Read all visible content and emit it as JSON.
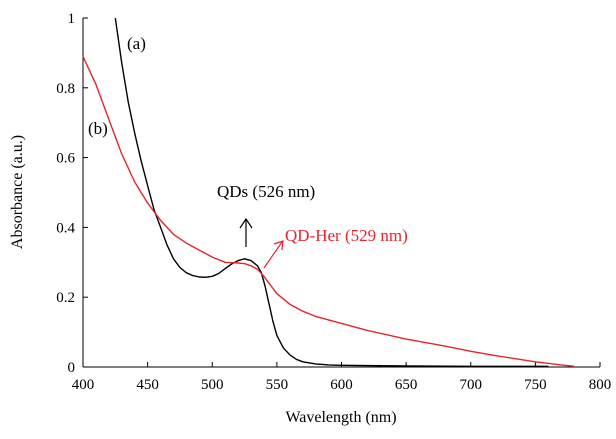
{
  "chart_data": {
    "type": "line",
    "title": "",
    "xlabel": "Wavelength (nm)",
    "ylabel": "Absorbance (a.u.)",
    "xlim": [
      400,
      800
    ],
    "ylim": [
      0,
      1
    ],
    "x_ticks": [
      400,
      450,
      500,
      550,
      600,
      650,
      700,
      750,
      800
    ],
    "y_ticks": [
      0,
      0.2,
      0.4,
      0.6,
      0.8,
      1
    ],
    "x_tick_labels": [
      "400",
      "450",
      "500",
      "550",
      "600",
      "650",
      "700",
      "750",
      "800"
    ],
    "y_tick_labels": [
      "0",
      "0.2",
      "0.4",
      "0.6",
      "0.8",
      "1"
    ],
    "grid": false,
    "legend": "none",
    "series": [
      {
        "name": "(a)",
        "color": "#000000",
        "x": [
          425,
          430,
          435,
          440,
          445,
          450,
          455,
          460,
          465,
          470,
          475,
          480,
          485,
          490,
          495,
          500,
          505,
          510,
          515,
          520,
          525,
          530,
          535,
          538,
          541,
          544,
          547,
          550,
          555,
          560,
          565,
          570,
          580,
          590,
          600,
          650,
          700,
          750,
          760
        ],
        "y": [
          1.0,
          0.87,
          0.76,
          0.67,
          0.59,
          0.52,
          0.45,
          0.4,
          0.35,
          0.31,
          0.285,
          0.27,
          0.262,
          0.258,
          0.257,
          0.26,
          0.268,
          0.282,
          0.295,
          0.305,
          0.31,
          0.305,
          0.29,
          0.27,
          0.23,
          0.18,
          0.13,
          0.09,
          0.055,
          0.035,
          0.022,
          0.015,
          0.009,
          0.006,
          0.005,
          0.003,
          0.002,
          0.002,
          0.002
        ]
      },
      {
        "name": "(b)",
        "color": "#e8232e",
        "x": [
          400,
          410,
          420,
          430,
          440,
          450,
          460,
          470,
          480,
          490,
          500,
          510,
          520,
          525,
          530,
          535,
          540,
          545,
          550,
          560,
          570,
          580,
          600,
          620,
          650,
          680,
          700,
          720,
          750,
          770,
          780
        ],
        "y": [
          0.89,
          0.81,
          0.71,
          0.61,
          0.53,
          0.47,
          0.42,
          0.38,
          0.355,
          0.335,
          0.315,
          0.3,
          0.298,
          0.296,
          0.29,
          0.28,
          0.26,
          0.235,
          0.21,
          0.18,
          0.16,
          0.145,
          0.125,
          0.105,
          0.08,
          0.06,
          0.045,
          0.032,
          0.015,
          0.006,
          0.002
        ]
      }
    ],
    "annotations": {
      "series_a_label": "(a)",
      "series_b_label": "(b)",
      "qds_label": "QDs (526 nm)",
      "qd_her_label": "QD-Her (529 nm)",
      "qds_color": "#000000",
      "qd_her_color": "#e8232e"
    }
  }
}
